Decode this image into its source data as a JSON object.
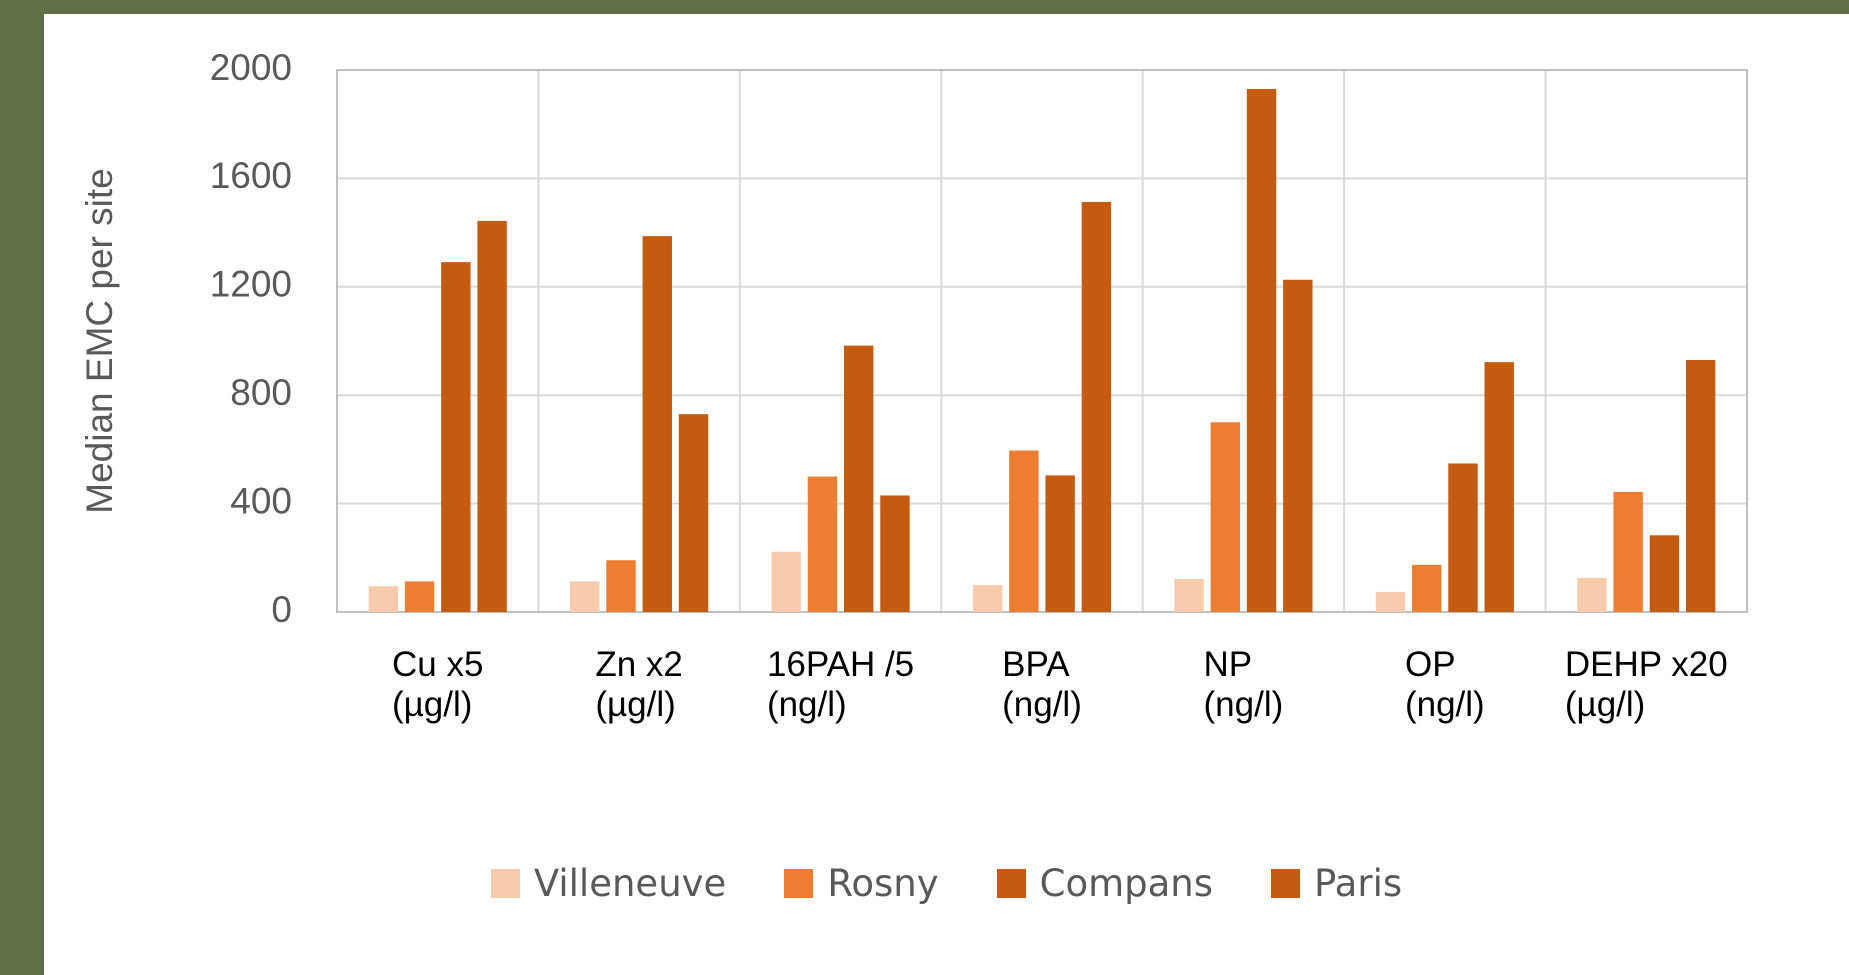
{
  "chart_data": {
    "type": "bar",
    "y_label": "Median EMC per site",
    "categories": [
      "Cu x5\n(µg/l)",
      "Zn x2\n(µg/l)",
      "16PAH /5\n(ng/l)",
      "BPA\n(ng/l)",
      "NP\n(ng/l)",
      "OP\n(ng/l)",
      "DEHP x20\n(µg/l)"
    ],
    "series": [
      {
        "name": "Villeneuve",
        "color": "#f8cbad",
        "values": [
          95,
          113,
          222,
          100,
          122,
          74,
          126
        ]
      },
      {
        "name": "Rosny",
        "color": "#ed7d31",
        "values": [
          113,
          191,
          500,
          596,
          700,
          174,
          443
        ]
      },
      {
        "name": "Compans",
        "color": "#c55a11",
        "values": [
          1291,
          1387,
          983,
          504,
          1930,
          548,
          283
        ]
      },
      {
        "name": "Paris",
        "color": "#c55a11",
        "values": [
          1443,
          730,
          430,
          1513,
          1226,
          922,
          930
        ]
      }
    ],
    "ylim": [
      0,
      2000
    ],
    "yticks": [
      0,
      400,
      800,
      1200,
      1600,
      2000
    ],
    "grid": true,
    "legend": "bottom"
  }
}
